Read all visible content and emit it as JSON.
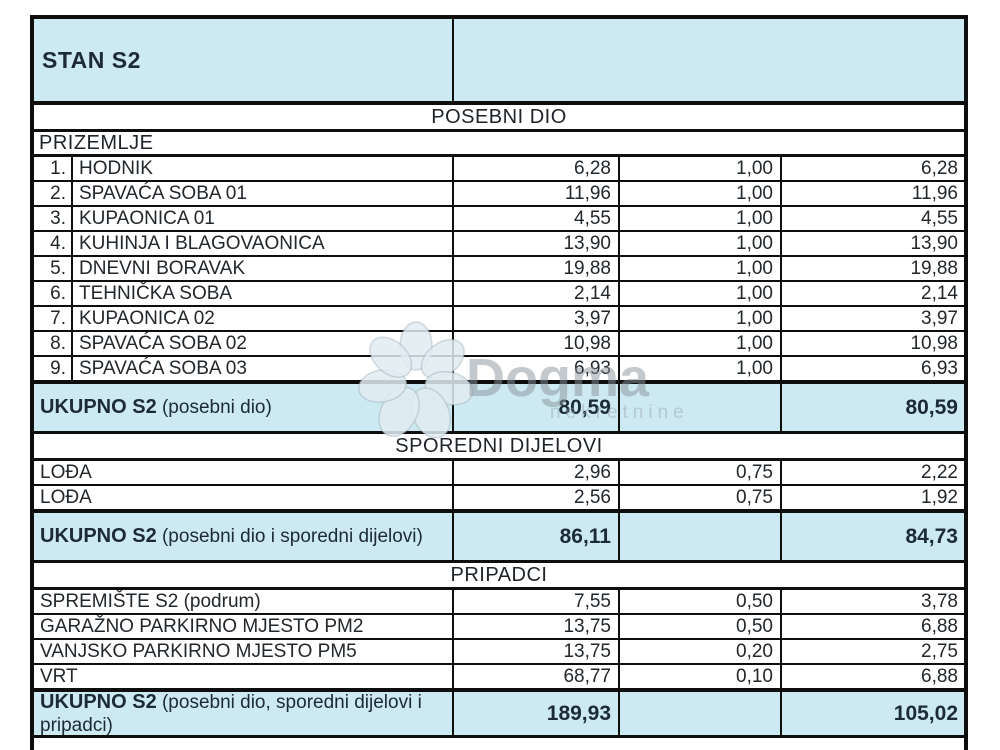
{
  "title": "STAN S2",
  "sections": {
    "posebni": {
      "header": "POSEBNI DIO",
      "floor": "PRIZEMLJE",
      "rows": [
        {
          "num": "1.",
          "label": "HODNIK",
          "area": "6,28",
          "coef": "1,00",
          "value": "6,28"
        },
        {
          "num": "2.",
          "label": "SPAVAĆA SOBA 01",
          "area": "11,96",
          "coef": "1,00",
          "value": "11,96"
        },
        {
          "num": "3.",
          "label": "KUPAONICA 01",
          "area": "4,55",
          "coef": "1,00",
          "value": "4,55"
        },
        {
          "num": "4.",
          "label": "KUHINJA I BLAGOVAONICA",
          "area": "13,90",
          "coef": "1,00",
          "value": "13,90"
        },
        {
          "num": "5.",
          "label": "DNEVNI BORAVAK",
          "area": "19,88",
          "coef": "1,00",
          "value": "19,88"
        },
        {
          "num": "6.",
          "label": "TEHNIČKA SOBA",
          "area": "2,14",
          "coef": "1,00",
          "value": "2,14"
        },
        {
          "num": "7.",
          "label": "KUPAONICA 02",
          "area": "3,97",
          "coef": "1,00",
          "value": "3,97"
        },
        {
          "num": "8.",
          "label": "SPAVAĆA SOBA 02",
          "area": "10,98",
          "coef": "1,00",
          "value": "10,98"
        },
        {
          "num": "9.",
          "label": "SPAVAĆA SOBA 03",
          "area": "6,93",
          "coef": "1,00",
          "value": "6,93"
        }
      ],
      "total": {
        "label": "UKUPNO S2",
        "sublabel": "(posebni dio)",
        "area": "80,59",
        "value": "80,59"
      }
    },
    "sporedni": {
      "header": "SPOREDNI DIJELOVI",
      "rows": [
        {
          "label": "LOĐA",
          "area": "2,96",
          "coef": "0,75",
          "value": "2,22"
        },
        {
          "label": "LOĐA",
          "area": "2,56",
          "coef": "0,75",
          "value": "1,92"
        }
      ],
      "total": {
        "label": "UKUPNO S2",
        "sublabel": "(posebni dio i sporedni dijelovi)",
        "area": "86,11",
        "value": "84,73"
      }
    },
    "pripadci": {
      "header": "PRIPADCI",
      "rows": [
        {
          "label": "SPREMIŠTE S2 (podrum)",
          "area": "7,55",
          "coef": "0,50",
          "value": "3,78"
        },
        {
          "label": "GARAŽNO PARKIRNO MJESTO PM2",
          "area": "13,75",
          "coef": "0,50",
          "value": "6,88"
        },
        {
          "label": "VANJSKO PARKIRNO MJESTO PM5",
          "area": "13,75",
          "coef": "0,20",
          "value": "2,75"
        },
        {
          "label": "VRT",
          "area": "68,77",
          "coef": "0,10",
          "value": "6,88"
        }
      ],
      "total": {
        "label": "UKUPNO S2",
        "sublabel": "(posebni dio, sporedni dijelovi i pripadci)",
        "area": "189,93",
        "value": "105,02"
      }
    }
  },
  "watermark": {
    "text": "Dogma",
    "subtext": "nekretnine"
  },
  "colors": {
    "accent_blue": "#cde9f1",
    "border": "#0e0e0e",
    "header_text": "#1c2b36"
  }
}
